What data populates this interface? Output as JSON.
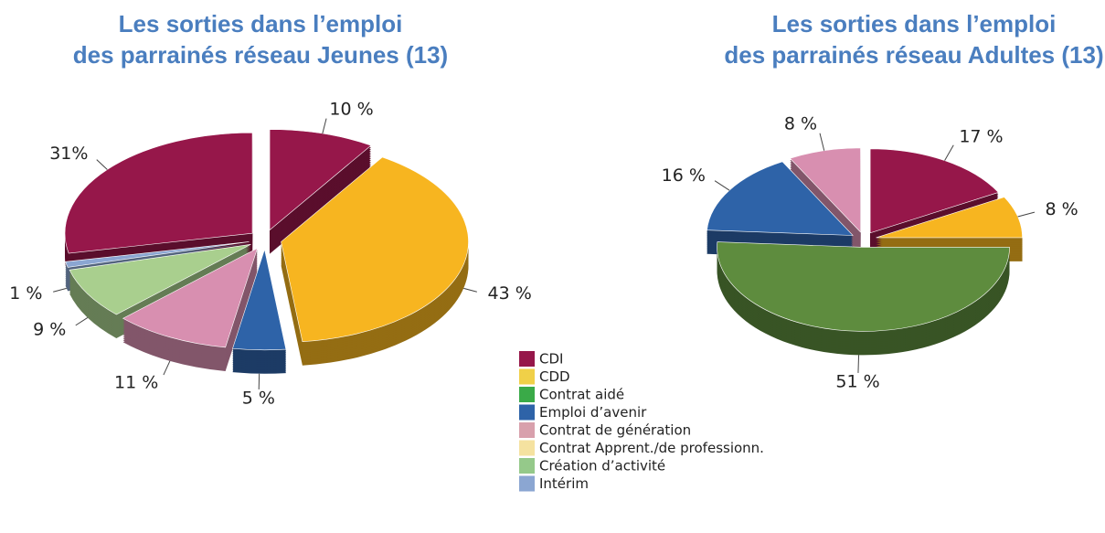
{
  "chart_data": [
    {
      "type": "pie",
      "title": [
        "Les sorties dans l’emploi",
        "des parrainés réseau Jeunes (13)"
      ],
      "values": [
        10,
        43,
        5,
        11,
        9,
        1,
        31
      ],
      "value_labels": [
        "10 %",
        "43 %",
        "5 %",
        "11 %",
        "9 %",
        "1 %",
        "31%"
      ],
      "colors": [
        "#96174a",
        "#f7b520",
        "#2e63a8",
        "#d88fb0",
        "#a9cf8e",
        "#8ba6d2",
        "#96174a"
      ]
    },
    {
      "type": "pie",
      "title": [
        "Les sorties dans l’emploi",
        "des parrainés réseau Adultes (13)"
      ],
      "values": [
        17,
        8,
        51,
        16,
        8
      ],
      "value_labels": [
        "17 %",
        "8 %",
        "51 %",
        "16 %",
        "8 %"
      ],
      "colors": [
        "#96174a",
        "#f7b520",
        "#5e8c3e",
        "#2e63a8",
        "#d88fb0"
      ]
    }
  ],
  "legend": {
    "items": [
      {
        "name": "CDI",
        "color": "#96174a"
      },
      {
        "name": "CDD",
        "color": "#f0d048"
      },
      {
        "name": "Contrat aidé",
        "color": "#3aaa48"
      },
      {
        "name": "Emploi d’avenir",
        "color": "#2e63a8"
      },
      {
        "name": "Contrat de génération",
        "color": "#d8a0ac"
      },
      {
        "name": "Contrat Apprent./de professionn.",
        "color": "#f5e2a0"
      },
      {
        "name": "Création d’activité",
        "color": "#95c98a"
      },
      {
        "name": "Intérim",
        "color": "#8ba6d2"
      }
    ]
  }
}
